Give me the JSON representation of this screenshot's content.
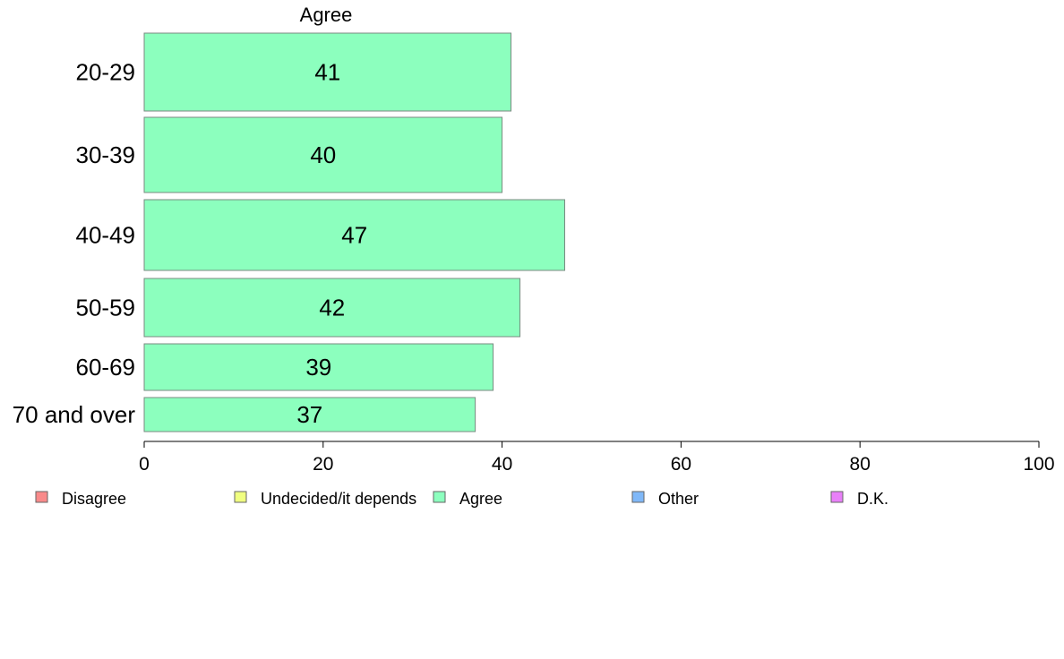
{
  "chart_data": {
    "type": "bar",
    "orientation": "horizontal",
    "title": "Agree",
    "categories": [
      "20-29",
      "30-39",
      "40-49",
      "50-59",
      "60-69",
      "70 and over"
    ],
    "series": [
      {
        "name": "Agree",
        "values": [
          41,
          40,
          47,
          42,
          39,
          37
        ],
        "color": "#8cffbe"
      }
    ],
    "data_labels": [
      "41",
      "40",
      "47",
      "42",
      "39",
      "37"
    ],
    "xlim": [
      0,
      100
    ],
    "x_ticks": [
      0,
      20,
      40,
      60,
      80,
      100
    ],
    "grid": false,
    "legend_position": "bottom",
    "legend": [
      {
        "label": "Disagree",
        "color": "#f98a8a"
      },
      {
        "label": "Undecided/it depends",
        "color": "#f0ff80"
      },
      {
        "label": "Agree",
        "color": "#8cffbe"
      },
      {
        "label": "Other",
        "color": "#80b8f8"
      },
      {
        "label": "D.K.",
        "color": "#e880f8"
      }
    ]
  }
}
